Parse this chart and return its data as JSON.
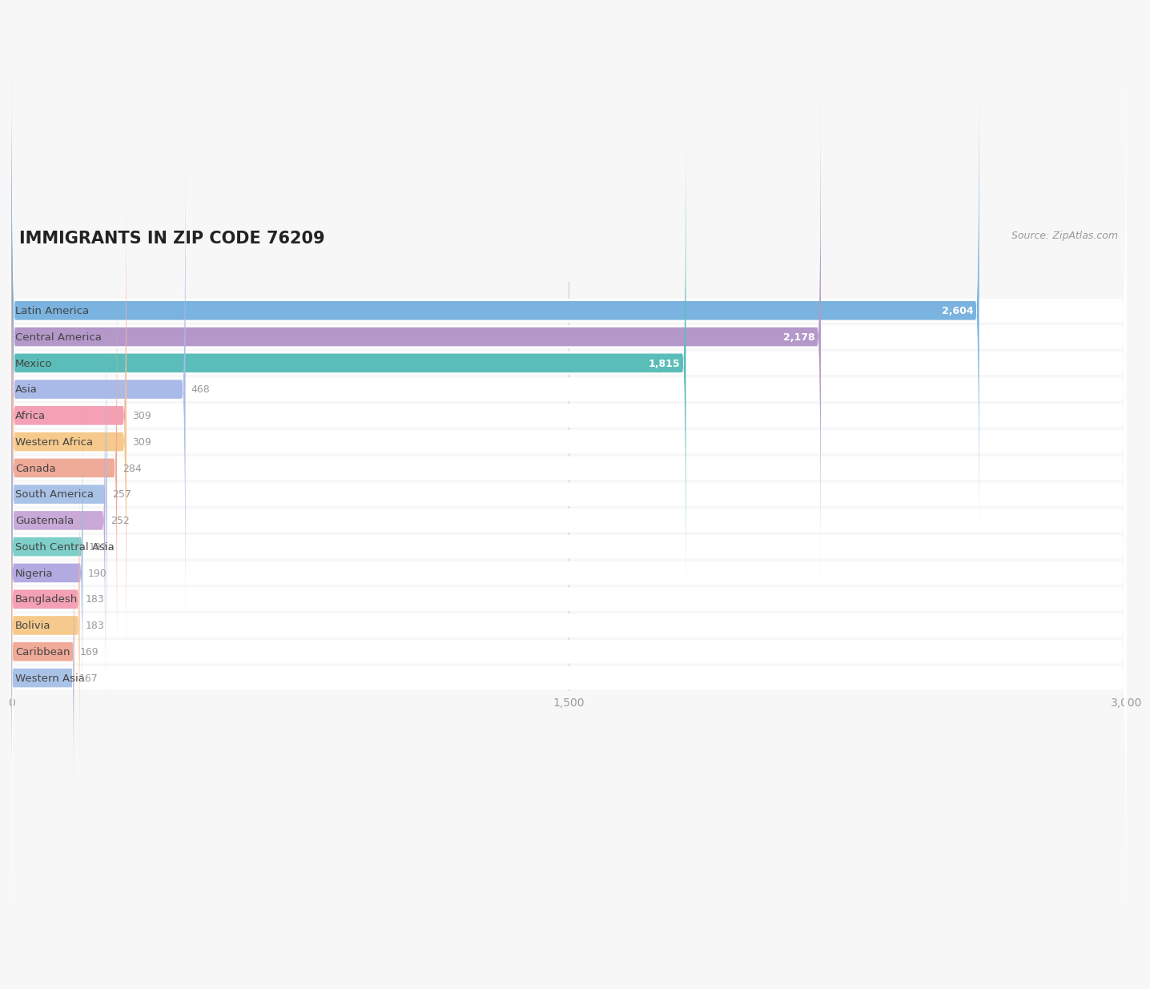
{
  "title": "IMMIGRANTS IN ZIP CODE 76209",
  "source": "Source: ZipAtlas.com",
  "categories": [
    "Latin America",
    "Central America",
    "Mexico",
    "Asia",
    "Africa",
    "Western Africa",
    "Canada",
    "South America",
    "Guatemala",
    "South Central Asia",
    "Nigeria",
    "Bangladesh",
    "Bolivia",
    "Caribbean",
    "Western Asia"
  ],
  "values": [
    2604,
    2178,
    1815,
    468,
    309,
    309,
    284,
    257,
    252,
    192,
    190,
    183,
    183,
    169,
    167
  ],
  "bar_colors": [
    "#7ab3df",
    "#b498ca",
    "#5bbdb9",
    "#a9b9e8",
    "#f4a0b5",
    "#f6ca8c",
    "#f0aa98",
    "#a9c2e8",
    "#c8a9d8",
    "#7ecfc9",
    "#b2aae0",
    "#f4a0b5",
    "#f6ca8c",
    "#f0aa98",
    "#a9c2e8"
  ],
  "background_color": "#f7f7f7",
  "row_bg_color": "#ffffff",
  "label_color": "#444444",
  "value_color_inside": "#ffffff",
  "value_color_outside": "#999999",
  "title_color": "#222222",
  "source_color": "#999999",
  "xlim": [
    0,
    3000
  ],
  "xticks": [
    0,
    1500,
    3000
  ],
  "bar_height": 0.72,
  "value_threshold": 600
}
